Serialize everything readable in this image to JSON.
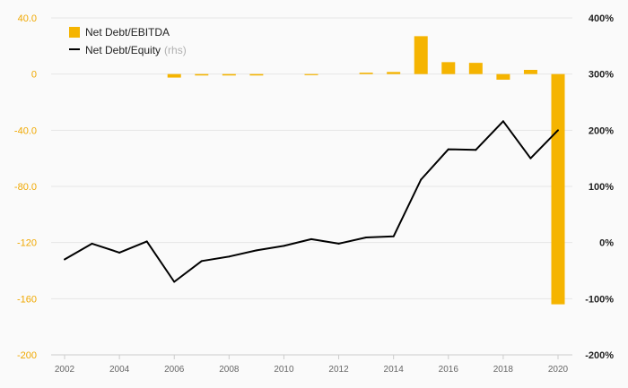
{
  "chart_data": {
    "type": "bar",
    "x": [
      2002,
      2003,
      2004,
      2005,
      2006,
      2007,
      2008,
      2009,
      2010,
      2011,
      2012,
      2013,
      2014,
      2015,
      2016,
      2017,
      2018,
      2019,
      2020
    ],
    "x_tick_labels": [
      "2002",
      "2004",
      "2006",
      "2008",
      "2010",
      "2012",
      "2014",
      "2016",
      "2018",
      "2020"
    ],
    "series": [
      {
        "name": "Net Debt/EBITDA",
        "type": "bar",
        "axis": "left",
        "color": "#f5b400",
        "values": [
          0,
          0,
          0,
          0,
          -2.5,
          -1,
          -1,
          -1,
          0,
          -0.5,
          0,
          1,
          1.5,
          27,
          8.5,
          8,
          -4,
          3,
          -164
        ]
      },
      {
        "name": "Net Debt/Equity",
        "name_suffix": "(rhs)",
        "type": "line",
        "axis": "right",
        "color": "#000000",
        "values": [
          -30,
          -2,
          -18,
          2,
          -70,
          -33,
          -25,
          -14,
          -6,
          6,
          -2,
          9,
          11,
          112,
          166,
          165,
          216,
          150,
          200
        ]
      }
    ],
    "y_left": {
      "range": [
        -200,
        40
      ],
      "ticks": [
        40,
        0,
        -40,
        -80,
        -120,
        -160,
        -200
      ],
      "tick_labels": [
        "40.0",
        "0",
        "-40.0",
        "-80.0",
        "-120",
        "-160",
        "-200"
      ]
    },
    "y_right": {
      "range": [
        -200,
        400
      ],
      "ticks": [
        400,
        300,
        200,
        100,
        0,
        -100,
        -200
      ],
      "tick_labels": [
        "400%",
        "300%",
        "200%",
        "100%",
        "0%",
        "-100%",
        "-200%"
      ]
    },
    "legend": {
      "position": "top-left"
    },
    "grid": "horizontal",
    "colors": {
      "grid": "#e6e6e6",
      "left_axis_text": "#f0a800",
      "right_axis_text": "#222222",
      "x_axis_text": "#666666"
    }
  }
}
